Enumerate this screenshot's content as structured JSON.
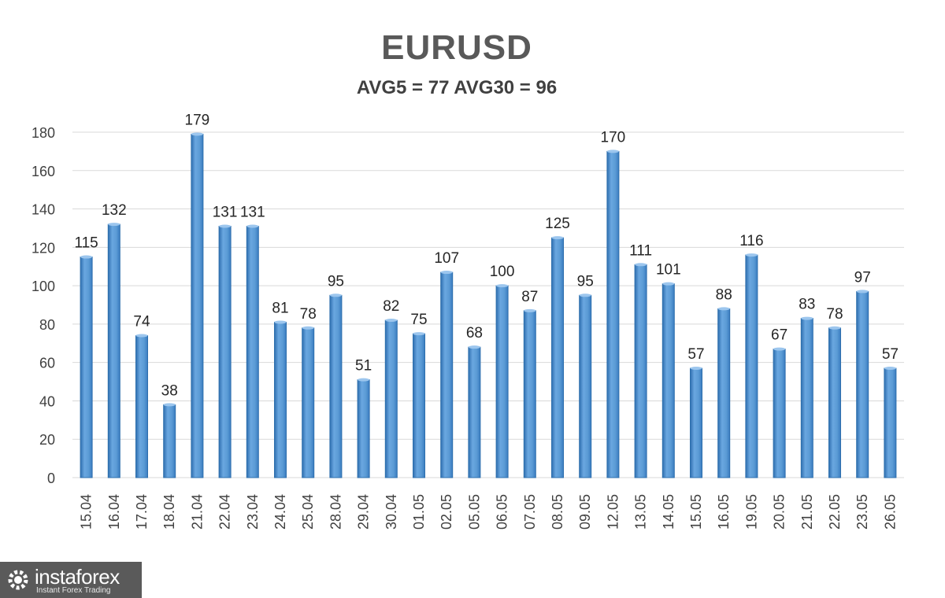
{
  "chart_data": {
    "type": "bar",
    "title": "EURUSD",
    "subtitle": "AVG5 = 77 AVG30 = 96",
    "categories": [
      "15.04",
      "16.04",
      "17.04",
      "18.04",
      "21.04",
      "22.04",
      "23.04",
      "24.04",
      "25.04",
      "28.04",
      "29.04",
      "30.04",
      "01.05",
      "02.05",
      "05.05",
      "06.05",
      "07.05",
      "08.05",
      "09.05",
      "12.05",
      "13.05",
      "14.05",
      "15.05",
      "16.05",
      "19.05",
      "20.05",
      "21.05",
      "22.05",
      "23.05",
      "26.05"
    ],
    "values": [
      115,
      132,
      74,
      38,
      179,
      131,
      131,
      81,
      78,
      95,
      51,
      82,
      75,
      107,
      68,
      100,
      87,
      125,
      95,
      170,
      111,
      101,
      57,
      88,
      116,
      67,
      83,
      78,
      97,
      57
    ],
    "ylim": [
      0,
      180
    ],
    "yticks": [
      0,
      20,
      40,
      60,
      80,
      100,
      120,
      140,
      160,
      180
    ],
    "grid": true,
    "data_labels": true,
    "colors": {
      "bar": "#5b9bd5",
      "bar_edge": "#2e6fad",
      "grid": "#d9d9d9",
      "text": "#404040"
    }
  },
  "branding": {
    "logo_name": "instaforex",
    "logo_tagline": "Instant Forex Trading"
  }
}
